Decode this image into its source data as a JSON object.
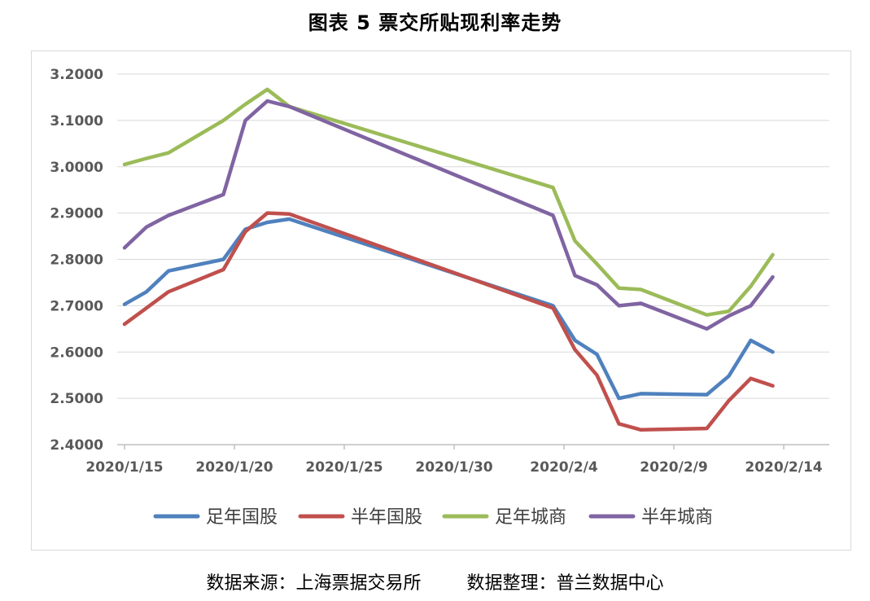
{
  "title": "图表 5  票交所贴现利率走势",
  "source": "数据来源：上海票据交易所        数据整理：普兰数据中心",
  "chart_data": {
    "type": "line",
    "xticks": [
      "2020/1/15",
      "2020/1/20",
      "2020/1/25",
      "2020/1/30",
      "2020/2/4",
      "2020/2/9",
      "2020/2/14"
    ],
    "xrange": [
      "2020/1/15",
      "2020/2/14"
    ],
    "x": [
      "2020/1/15",
      "2020/1/16",
      "2020/1/17",
      "2020/1/19",
      "2020/1/20",
      "2020/1/21",
      "2020/1/22",
      "2020/2/3",
      "2020/2/4",
      "2020/2/5",
      "2020/2/6",
      "2020/2/7",
      "2020/2/10",
      "2020/2/11",
      "2020/2/12",
      "2020/2/13",
      "2020/2/14"
    ],
    "ylim": [
      2.4,
      3.2
    ],
    "yticks": [
      "2.4000",
      "2.5000",
      "2.6000",
      "2.7000",
      "2.8000",
      "2.9000",
      "3.0000",
      "3.1000",
      "3.2000"
    ],
    "grid": true,
    "legend_position": "bottom",
    "series": [
      {
        "name": "足年国股",
        "color": "#4f81bd",
        "values": [
          2.703,
          2.73,
          2.775,
          2.8,
          2.865,
          2.88,
          2.887,
          2.7,
          2.625,
          2.595,
          2.5,
          2.51,
          2.508,
          2.548,
          2.625,
          2.6,
          null
        ]
      },
      {
        "name": "半年国股",
        "color": "#c0504d",
        "values": [
          2.66,
          2.695,
          2.73,
          2.778,
          2.86,
          2.9,
          2.898,
          2.695,
          2.605,
          2.55,
          2.445,
          2.432,
          2.435,
          2.495,
          2.543,
          2.527,
          null
        ]
      },
      {
        "name": "足年城商",
        "color": "#9bbb59",
        "values": [
          3.005,
          3.018,
          3.03,
          3.1,
          3.135,
          3.167,
          3.13,
          2.955,
          2.84,
          2.79,
          2.738,
          2.735,
          2.68,
          2.688,
          2.742,
          2.81,
          null
        ]
      },
      {
        "name": "半年城商",
        "color": "#8064a2",
        "values": [
          2.825,
          2.87,
          2.895,
          2.94,
          3.1,
          3.142,
          3.13,
          2.895,
          2.765,
          2.745,
          2.7,
          2.705,
          2.65,
          2.678,
          2.7,
          2.762,
          null
        ]
      }
    ],
    "series_x": [
      "2020/1/15",
      "2020/1/16",
      "2020/1/17",
      "2020/1/19.5",
      "2020/1/20.5",
      "2020/1/21.5",
      "2020/1/22.5",
      "2020/2/3.5",
      "2020/2/4.5",
      "2020/2/5.5",
      "2020/2/6.5",
      "2020/2/7.5",
      "2020/2/10.5",
      "2020/2/11.5",
      "2020/2/12.5",
      "2020/2/13.5",
      null
    ]
  }
}
